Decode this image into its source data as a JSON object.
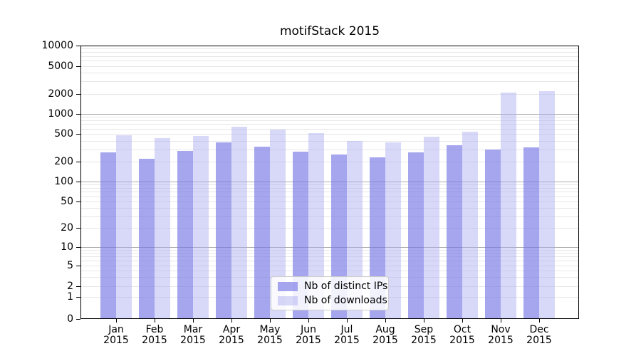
{
  "title": "motifStack 2015",
  "chart_data": {
    "type": "bar",
    "title": "motifStack 2015",
    "xlabel": "",
    "ylabel": "",
    "y_scale": "symlog",
    "grid": true,
    "legend_position": "bottom-center-inside",
    "y_ticks": [
      0,
      1,
      2,
      5,
      10,
      20,
      50,
      100,
      200,
      500,
      1000,
      2000,
      5000,
      10000
    ],
    "y_tick_labels": [
      "0",
      "1",
      "2",
      "5",
      "10",
      "20",
      "50",
      "100",
      "200",
      "500",
      "1000",
      "2000",
      "5000",
      "10000"
    ],
    "ylim": [
      0,
      10000
    ],
    "categories": [
      "Jan 2015",
      "Feb 2015",
      "Mar 2015",
      "Apr 2015",
      "May 2015",
      "Jun 2015",
      "Jul 2015",
      "Aug 2015",
      "Sep 2015",
      "Oct 2015",
      "Nov 2015",
      "Dec 2015"
    ],
    "series": [
      {
        "name": "Nb of distinct IPs",
        "color": "rgba(118,118,230,0.65)",
        "values": [
          270,
          220,
          282,
          382,
          325,
          280,
          252,
          230,
          272,
          345,
          298,
          320
        ]
      },
      {
        "name": "Nb of downloads",
        "color": "rgba(168,168,239,0.45)",
        "values": [
          485,
          433,
          465,
          635,
          585,
          520,
          400,
          380,
          458,
          545,
          2080,
          2160
        ]
      }
    ]
  },
  "colors": {
    "grid_minor": "#e7e7e7",
    "grid_decade": "#ababab",
    "axis": "#000000",
    "title_text": "#000000",
    "legend_border": "#cccccc"
  }
}
